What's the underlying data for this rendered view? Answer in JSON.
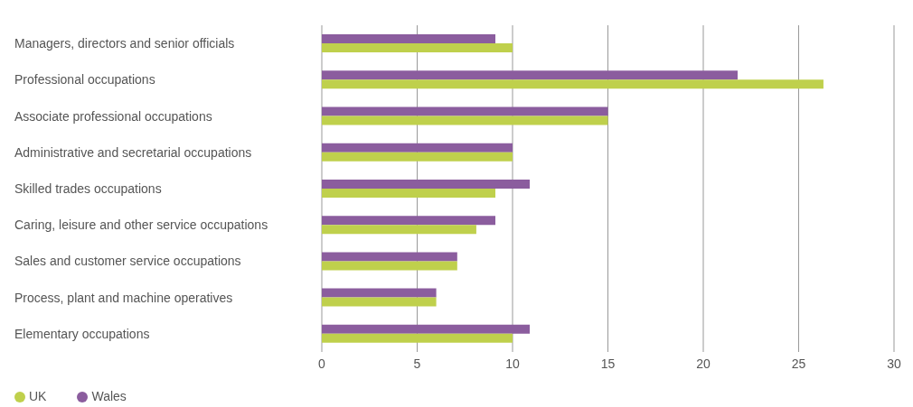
{
  "chart_data": {
    "type": "bar",
    "orientation": "horizontal",
    "categories": [
      "Managers, directors and senior officials",
      "Professional occupations",
      "Associate professional occupations",
      "Administrative and secretarial occupations",
      "Skilled trades occupations",
      "Caring, leisure and other service occupations",
      "Sales and customer service occupations",
      "Process, plant and machine operatives",
      "Elementary occupations"
    ],
    "series": [
      {
        "name": "Wales",
        "color": "#8b5d9e",
        "values": [
          9.1,
          21.8,
          15.0,
          10.0,
          10.9,
          9.1,
          7.1,
          6.0,
          10.9
        ]
      },
      {
        "name": "UK",
        "color": "#bfd04c",
        "values": [
          10.0,
          26.3,
          15.0,
          10.0,
          9.1,
          8.1,
          7.1,
          6.0,
          10.0
        ]
      }
    ],
    "xlim": [
      0,
      30
    ],
    "xticks": [
      0,
      5,
      10,
      15,
      20,
      25,
      30
    ],
    "grid": "x",
    "legend": "bottom left"
  }
}
